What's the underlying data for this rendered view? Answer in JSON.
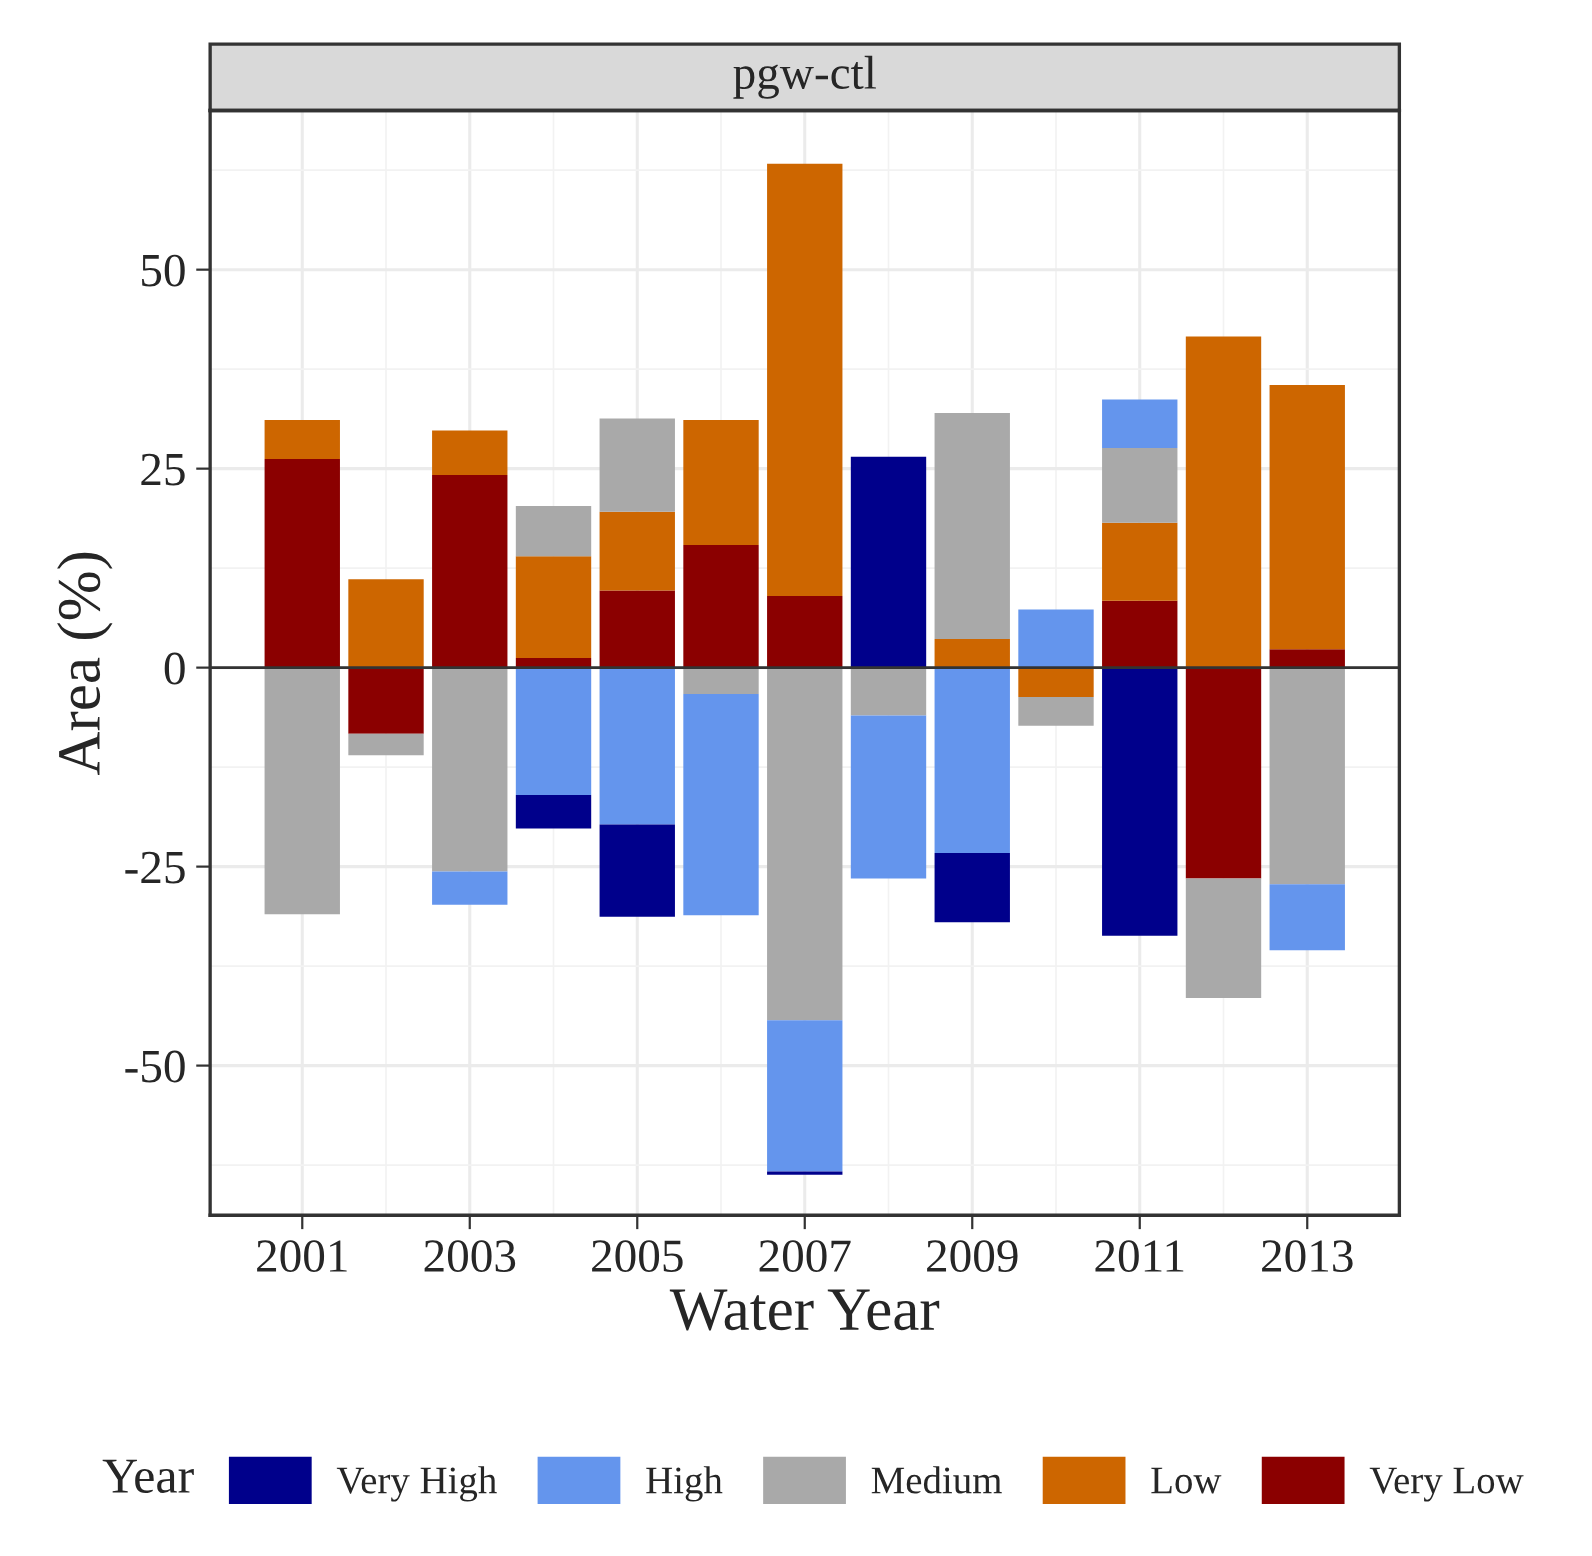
{
  "chart_data": {
    "type": "bar",
    "title": "pgw-ctl",
    "xlabel": "Water Year",
    "ylabel": "Area (%)",
    "legend_title": "Year",
    "x": [
      2001,
      2002,
      2003,
      2004,
      2005,
      2006,
      2007,
      2008,
      2009,
      2010,
      2011,
      2012,
      2013
    ],
    "stacked": true,
    "series": [
      {
        "name": "Very Low",
        "color": "#8b0000",
        "values": [
          26.2,
          -8.3,
          24.2,
          1.2,
          9.7,
          15.4,
          9,
          null,
          null,
          null,
          8.4,
          -26.5,
          2.3
        ]
      },
      {
        "name": "Low",
        "color": "#cd6600",
        "values": [
          4.9,
          11.1,
          5.6,
          12.8,
          9.9,
          15.7,
          54.3,
          null,
          3.6,
          -3.7,
          9.8,
          41.6,
          33.2
        ]
      },
      {
        "name": "Medium",
        "color": "#a9a9a9",
        "values": [
          -31,
          -2.7,
          -25.6,
          6.3,
          11.7,
          -3.3,
          -44.3,
          -6,
          28.4,
          -3.6,
          9.4,
          -15,
          -27.2
        ]
      },
      {
        "name": "High",
        "color": "#6495ed",
        "values": [
          null,
          null,
          -4.2,
          -16,
          -19.7,
          -27.8,
          -19,
          -20.5,
          -23.3,
          7.3,
          6.1,
          null,
          -8.3
        ]
      },
      {
        "name": "Very High",
        "color": "#00008b",
        "values": [
          null,
          null,
          null,
          -4.2,
          -11.6,
          null,
          -0.4,
          26.5,
          -8.7,
          null,
          -33.7,
          null,
          null
        ]
      }
    ],
    "xlim": [
      1999.9,
      2014.1
    ],
    "xticks": [
      2001,
      2003,
      2005,
      2007,
      2009,
      2011,
      2013
    ],
    "ylim": [
      -68.8,
      70
    ],
    "yticks": [
      -50,
      -25,
      0,
      25,
      50
    ],
    "ref_lines": [
      {
        "axis": "y",
        "value": 0,
        "color": "#333333"
      }
    ],
    "grid": true,
    "legend": "bottom"
  }
}
